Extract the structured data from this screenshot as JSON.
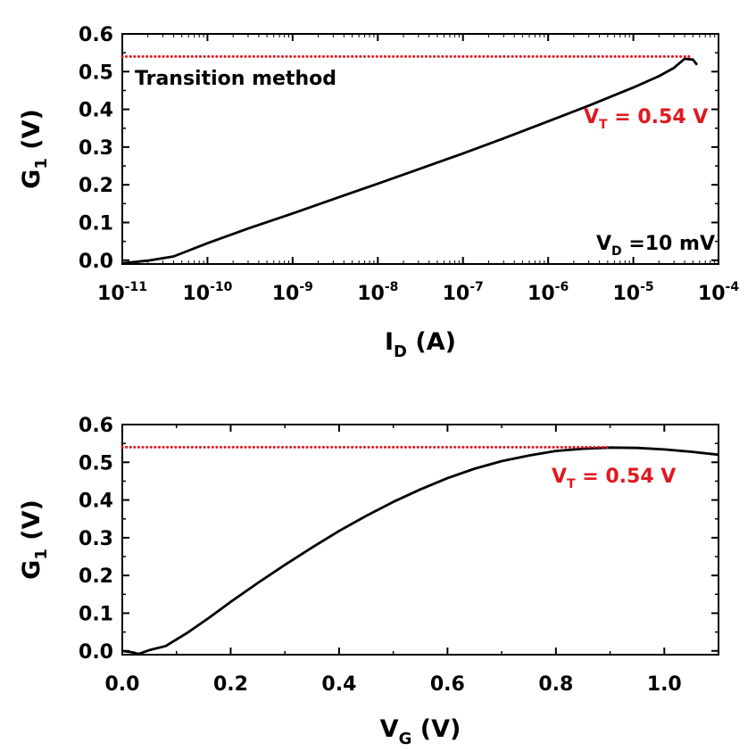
{
  "colors": {
    "curve": "#000000",
    "threshold": "#e0191f",
    "axes": "#000000"
  },
  "chart_data": [
    {
      "type": "line",
      "xlabel_main": "I",
      "xlabel_sub": "D",
      "xlabel_rest": " (A)",
      "ylabel_main": "G",
      "ylabel_sub": "1",
      "ylabel_rest": " (V)",
      "x_scale": "log",
      "xlim": [
        1e-11,
        0.0001
      ],
      "ylim": [
        -0.01,
        0.6
      ],
      "x_ticks": [
        {
          "value": 1e-11,
          "base": "10",
          "exp": "-11"
        },
        {
          "value": 1e-10,
          "base": "10",
          "exp": "-10"
        },
        {
          "value": 1e-09,
          "base": "10",
          "exp": "-9"
        },
        {
          "value": 1e-08,
          "base": "10",
          "exp": "-8"
        },
        {
          "value": 1e-07,
          "base": "10",
          "exp": "-7"
        },
        {
          "value": 1e-06,
          "base": "10",
          "exp": "-6"
        },
        {
          "value": 1e-05,
          "base": "10",
          "exp": "-5"
        },
        {
          "value": 0.0001,
          "base": "10",
          "exp": "-4"
        }
      ],
      "y_ticks": [
        {
          "value": 0.0,
          "label": "0.0"
        },
        {
          "value": 0.1,
          "label": "0.1"
        },
        {
          "value": 0.2,
          "label": "0.2"
        },
        {
          "value": 0.3,
          "label": "0.3"
        },
        {
          "value": 0.4,
          "label": "0.4"
        },
        {
          "value": 0.5,
          "label": "0.5"
        },
        {
          "value": 0.6,
          "label": "0.6"
        }
      ],
      "grid": false,
      "series": [
        {
          "style": "solid",
          "x": [
            1e-11,
            2e-11,
            4e-11,
            1e-10,
            3e-10,
            1e-09,
            3e-09,
            1e-08,
            3e-08,
            1e-07,
            3e-07,
            1e-06,
            3e-06,
            1e-05,
            2e-05,
            3e-05,
            4e-05,
            5e-05,
            5.6e-05
          ],
          "y": [
            -0.008,
            -0.001,
            0.01,
            0.045,
            0.084,
            0.124,
            0.162,
            0.203,
            0.241,
            0.283,
            0.323,
            0.368,
            0.41,
            0.458,
            0.488,
            0.51,
            0.534,
            0.532,
            0.518
          ]
        },
        {
          "style": "dotted",
          "x": [
            1e-11,
            5e-05
          ],
          "y": [
            0.54,
            0.54
          ]
        }
      ],
      "annotations": [
        {
          "kind": "text",
          "text": "Transition method",
          "position": "top-left"
        },
        {
          "kind": "vt",
          "main": "V",
          "sub": "T",
          "rest": " = 0.54 V",
          "position": "upper-right"
        },
        {
          "kind": "vd",
          "main": "V",
          "sub": "D",
          "rest": " =10 mV",
          "position": "bottom-right"
        }
      ]
    },
    {
      "type": "line",
      "xlabel_main": "V",
      "xlabel_sub": "G",
      "xlabel_rest": " (V)",
      "ylabel_main": "G",
      "ylabel_sub": "1",
      "ylabel_rest": " (V)",
      "x_scale": "linear",
      "xlim": [
        0.0,
        1.1
      ],
      "ylim": [
        -0.01,
        0.6
      ],
      "x_ticks": [
        {
          "value": 0.0,
          "label": "0.0"
        },
        {
          "value": 0.2,
          "label": "0.2"
        },
        {
          "value": 0.4,
          "label": "0.4"
        },
        {
          "value": 0.6,
          "label": "0.6"
        },
        {
          "value": 0.8,
          "label": "0.8"
        },
        {
          "value": 1.0,
          "label": "1.0"
        }
      ],
      "y_ticks": [
        {
          "value": 0.0,
          "label": "0.0"
        },
        {
          "value": 0.1,
          "label": "0.1"
        },
        {
          "value": 0.2,
          "label": "0.2"
        },
        {
          "value": 0.3,
          "label": "0.3"
        },
        {
          "value": 0.4,
          "label": "0.4"
        },
        {
          "value": 0.5,
          "label": "0.5"
        },
        {
          "value": 0.6,
          "label": "0.6"
        }
      ],
      "grid": false,
      "series": [
        {
          "style": "solid",
          "x": [
            0.0,
            0.02,
            0.03,
            0.05,
            0.08,
            0.12,
            0.16,
            0.2,
            0.25,
            0.3,
            0.35,
            0.4,
            0.45,
            0.5,
            0.55,
            0.6,
            0.65,
            0.7,
            0.75,
            0.8,
            0.85,
            0.9,
            0.95,
            1.0,
            1.05,
            1.1
          ],
          "y": [
            0.0,
            -0.004,
            -0.008,
            0.002,
            0.013,
            0.048,
            0.088,
            0.13,
            0.18,
            0.228,
            0.274,
            0.318,
            0.358,
            0.395,
            0.428,
            0.458,
            0.483,
            0.503,
            0.518,
            0.53,
            0.536,
            0.539,
            0.538,
            0.534,
            0.528,
            0.52
          ]
        },
        {
          "style": "dotted",
          "x": [
            0.0,
            0.9
          ],
          "y": [
            0.54,
            0.54
          ]
        }
      ],
      "annotations": [
        {
          "kind": "vt",
          "main": "V",
          "sub": "T",
          "rest": " = 0.54 V",
          "position": "upper-right"
        }
      ]
    }
  ]
}
